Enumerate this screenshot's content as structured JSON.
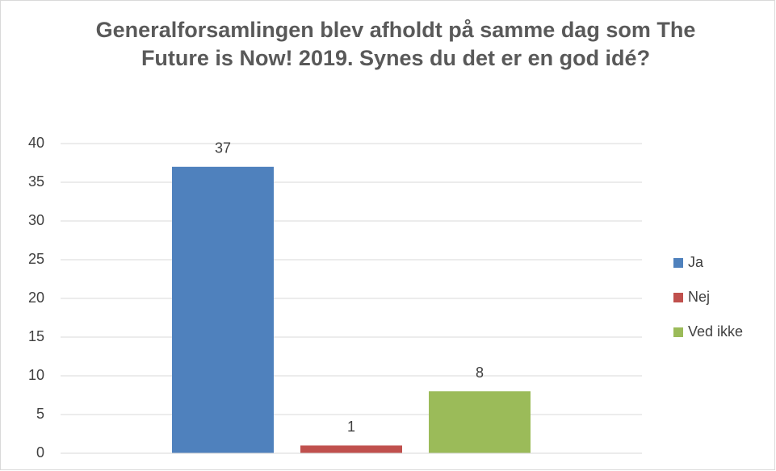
{
  "chart_data": {
    "type": "bar",
    "title": "Generalforsamlingen blev afholdt på samme dag som The Future is Now! 2019. Synes du det er en god idé?",
    "categories": [
      null
    ],
    "series": [
      {
        "name": "Ja",
        "color": "#4f81bd",
        "values": [
          37
        ]
      },
      {
        "name": "Nej",
        "color": "#c0504d",
        "values": [
          1
        ]
      },
      {
        "name": "Ved ikke",
        "color": "#9bbb59",
        "values": [
          8
        ]
      }
    ],
    "ylim": [
      0,
      40
    ],
    "yticks": [
      0,
      5,
      10,
      15,
      20,
      25,
      30,
      35,
      40
    ],
    "grid": true,
    "legend": "right"
  }
}
